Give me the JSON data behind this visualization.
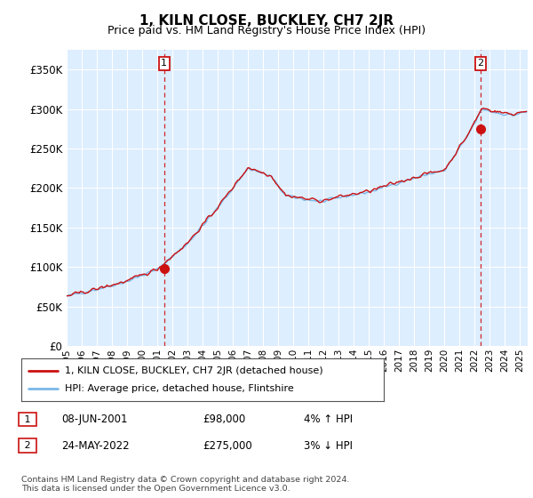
{
  "title": "1, KILN CLOSE, BUCKLEY, CH7 2JR",
  "subtitle": "Price paid vs. HM Land Registry's House Price Index (HPI)",
  "title_fontsize": 11,
  "subtitle_fontsize": 9,
  "ylabel_ticks": [
    "£0",
    "£50K",
    "£100K",
    "£150K",
    "£200K",
    "£250K",
    "£300K",
    "£350K"
  ],
  "ytick_values": [
    0,
    50000,
    100000,
    150000,
    200000,
    250000,
    300000,
    350000
  ],
  "ylim": [
    0,
    375000
  ],
  "xlim_start": 1995.0,
  "xlim_end": 2025.5,
  "hpi_color": "#7ab8e8",
  "price_color": "#cc1111",
  "dashed_line_color": "#cc1111",
  "background_color": "#ffffff",
  "chart_bg_color": "#ddeeff",
  "grid_color": "#ffffff",
  "sale1_x": 2001.44,
  "sale1_y": 98000,
  "sale1_label": "1",
  "sale2_x": 2022.39,
  "sale2_y": 275000,
  "sale2_label": "2",
  "legend_line1": "1, KILN CLOSE, BUCKLEY, CH7 2JR (detached house)",
  "legend_line2": "HPI: Average price, detached house, Flintshire",
  "annotation1_date": "08-JUN-2001",
  "annotation1_price": "£98,000",
  "annotation1_hpi": "4% ↑ HPI",
  "annotation2_date": "24-MAY-2022",
  "annotation2_price": "£275,000",
  "annotation2_hpi": "3% ↓ HPI",
  "footnote": "Contains HM Land Registry data © Crown copyright and database right 2024.\nThis data is licensed under the Open Government Licence v3.0.",
  "xtick_years": [
    1995,
    1996,
    1997,
    1998,
    1999,
    2000,
    2001,
    2002,
    2003,
    2004,
    2005,
    2006,
    2007,
    2008,
    2009,
    2010,
    2011,
    2012,
    2013,
    2014,
    2015,
    2016,
    2017,
    2018,
    2019,
    2020,
    2021,
    2022,
    2023,
    2024,
    2025
  ]
}
